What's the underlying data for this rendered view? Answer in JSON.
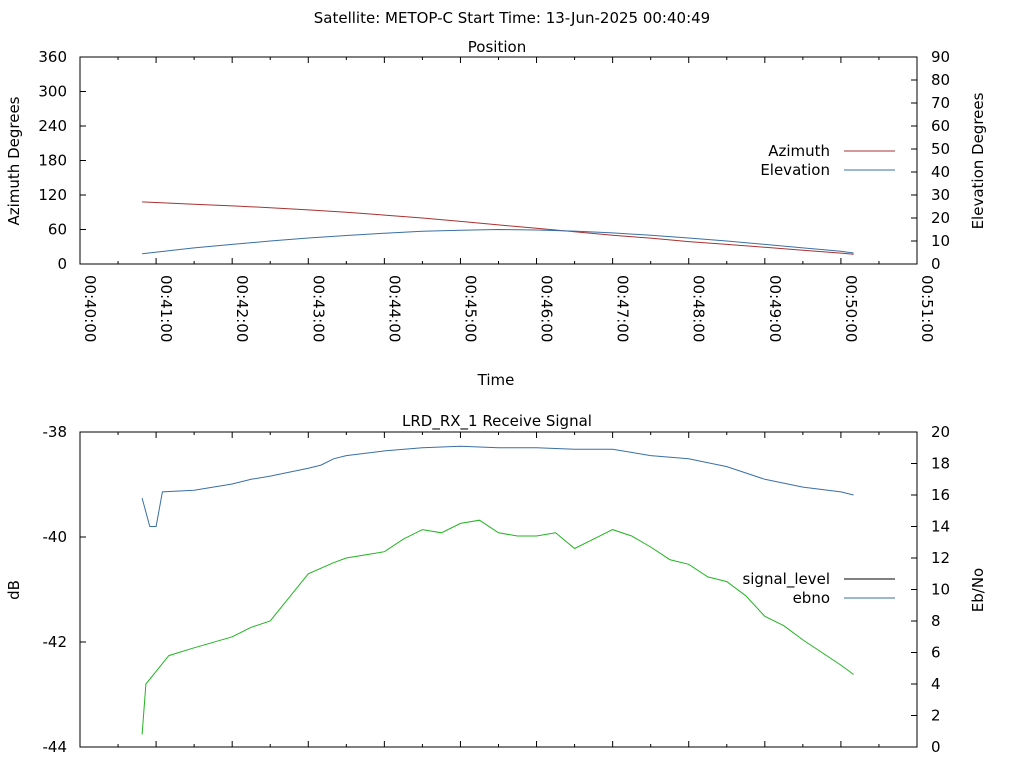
{
  "suptitle": "Satellite: METOP-C    Start Time: 13-Jun-2025 00:40:49",
  "chart_data": [
    {
      "type": "line",
      "title": "Position",
      "xlabel": "Time",
      "ylabel": "Azimuth Degrees",
      "y2label": "Elevation Degrees",
      "x_range": [
        "00:40:00",
        "00:51:00"
      ],
      "x_ticks": [
        "00:40:00",
        "00:41:00",
        "00:42:00",
        "00:43:00",
        "00:44:00",
        "00:45:00",
        "00:46:00",
        "00:47:00",
        "00:48:00",
        "00:49:00",
        "00:50:00",
        "00:51:00"
      ],
      "ylim": [
        0,
        360
      ],
      "y_ticks": [
        "0",
        "60",
        "120",
        "180",
        "240",
        "300",
        "360"
      ],
      "y2lim": [
        0,
        90
      ],
      "y2_ticks": [
        "0",
        "10",
        "20",
        "30",
        "40",
        "50",
        "60",
        "70",
        "80",
        "90"
      ],
      "legend_position": "right",
      "series": [
        {
          "name": "Azimuth",
          "axis": "left",
          "color": "#a83232",
          "x": [
            "00:40:49",
            "00:41:30",
            "00:42:00",
            "00:42:30",
            "00:43:00",
            "00:43:30",
            "00:44:00",
            "00:44:30",
            "00:45:00",
            "00:45:30",
            "00:46:00",
            "00:46:30",
            "00:47:00",
            "00:47:30",
            "00:48:00",
            "00:48:30",
            "00:49:00",
            "00:49:30",
            "00:50:00",
            "00:50:10"
          ],
          "y": [
            108,
            104,
            101,
            98,
            94,
            90,
            85,
            80,
            74,
            68,
            62,
            56,
            50,
            45,
            39,
            34,
            29,
            24,
            19,
            17
          ]
        },
        {
          "name": "Elevation",
          "axis": "right",
          "color": "#3a6fa5",
          "x": [
            "00:40:49",
            "00:41:30",
            "00:42:00",
            "00:42:30",
            "00:43:00",
            "00:43:30",
            "00:44:00",
            "00:44:30",
            "00:45:00",
            "00:45:30",
            "00:46:00",
            "00:46:30",
            "00:47:00",
            "00:47:30",
            "00:48:00",
            "00:48:30",
            "00:49:00",
            "00:49:30",
            "00:50:00",
            "00:50:10"
          ],
          "y": [
            4.5,
            7,
            8.5,
            10,
            11.3,
            12.4,
            13.4,
            14.2,
            14.7,
            15.0,
            14.8,
            14.3,
            13.5,
            12.5,
            11.3,
            10.0,
            8.5,
            7.0,
            5.5,
            4.8
          ]
        }
      ]
    },
    {
      "type": "line",
      "title": "LRD_RX_1 Receive Signal",
      "xlabel": "",
      "ylabel": "dB",
      "y2label": "Eb/No",
      "x_range": [
        "00:40:00",
        "00:51:00"
      ],
      "ylim": [
        -44,
        -38
      ],
      "y_ticks": [
        "-44",
        "-42",
        "-40",
        "-38"
      ],
      "y2lim": [
        0,
        20
      ],
      "y2_ticks": [
        "0",
        "2",
        "4",
        "6",
        "8",
        "10",
        "12",
        "14",
        "16",
        "18",
        "20"
      ],
      "legend_position": "right",
      "series": [
        {
          "name": "signal_level",
          "axis": "left",
          "color": "#000000",
          "x": [],
          "y": []
        },
        {
          "name": "ebno",
          "axis": "right",
          "color": "#3a6fa5",
          "x": [
            "00:40:49",
            "00:40:55",
            "00:41:00",
            "00:41:05",
            "00:41:30",
            "00:42:00",
            "00:42:15",
            "00:42:30",
            "00:43:00",
            "00:43:10",
            "00:43:20",
            "00:43:30",
            "00:44:00",
            "00:44:30",
            "00:45:00",
            "00:45:30",
            "00:46:00",
            "00:46:30",
            "00:47:00",
            "00:47:30",
            "00:48:00",
            "00:48:30",
            "00:49:00",
            "00:49:30",
            "00:50:00",
            "00:50:10"
          ],
          "y": [
            15.8,
            14.0,
            14.0,
            16.2,
            16.3,
            16.7,
            17.0,
            17.2,
            17.7,
            17.9,
            18.3,
            18.5,
            18.8,
            19.0,
            19.1,
            19.0,
            19.0,
            18.9,
            18.9,
            18.5,
            18.3,
            17.8,
            17.0,
            16.5,
            16.2,
            16.0
          ]
        },
        {
          "name": "",
          "axis": "right",
          "color": "#22b522",
          "x": [
            "00:40:49",
            "00:40:52",
            "00:41:00",
            "00:41:10",
            "00:41:30",
            "00:42:00",
            "00:42:15",
            "00:42:30",
            "00:43:00",
            "00:43:20",
            "00:43:30",
            "00:43:45",
            "00:44:00",
            "00:44:15",
            "00:44:30",
            "00:44:45",
            "00:45:00",
            "00:45:15",
            "00:45:30",
            "00:45:45",
            "00:46:00",
            "00:46:15",
            "00:46:30",
            "00:46:45",
            "00:47:00",
            "00:47:15",
            "00:47:30",
            "00:47:45",
            "00:48:00",
            "00:48:15",
            "00:48:30",
            "00:48:45",
            "00:49:00",
            "00:49:15",
            "00:49:30",
            "00:49:45",
            "00:50:00",
            "00:50:10"
          ],
          "y": [
            0.8,
            4.0,
            4.8,
            5.8,
            6.3,
            7.0,
            7.6,
            8.0,
            11.0,
            11.7,
            12.0,
            12.2,
            12.4,
            13.2,
            13.8,
            13.6,
            14.2,
            14.4,
            13.6,
            13.4,
            13.4,
            13.6,
            12.6,
            13.2,
            13.8,
            13.4,
            12.7,
            11.9,
            11.6,
            10.8,
            10.5,
            9.6,
            8.3,
            7.7,
            6.8,
            6.0,
            5.2,
            4.6
          ]
        }
      ]
    }
  ]
}
